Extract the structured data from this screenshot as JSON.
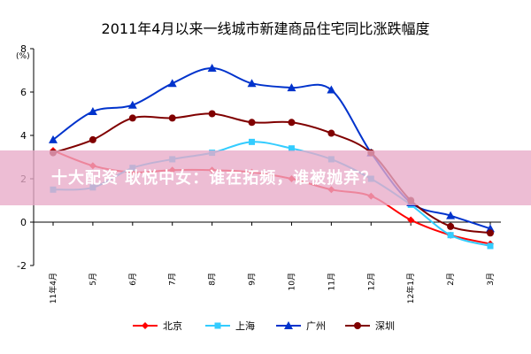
{
  "chart_data": {
    "type": "line",
    "title": "2011年4月以来一线城市新建商品住宅同比涨跌幅度",
    "ylabel": "(%)",
    "ylim": [
      -2,
      8
    ],
    "yticks": [
      -2,
      0,
      2,
      4,
      6,
      8
    ],
    "categories": [
      "11年4月",
      "5月",
      "6月",
      "7月",
      "8月",
      "9月",
      "10月",
      "11月",
      "12月",
      "12年1月",
      "2月",
      "3月"
    ],
    "grid": false,
    "legend_position": "bottom",
    "series": [
      {
        "name": "北京",
        "color": "#ff0000",
        "marker": "diamond",
        "values": [
          3.3,
          2.6,
          2.3,
          2.4,
          2.4,
          2.3,
          2.0,
          1.5,
          1.2,
          0.1,
          -0.6,
          -1.0
        ]
      },
      {
        "name": "上海",
        "color": "#33ccff",
        "marker": "square",
        "values": [
          1.5,
          1.6,
          2.5,
          2.9,
          3.2,
          3.7,
          3.4,
          2.9,
          2.0,
          0.8,
          -0.6,
          -1.1
        ]
      },
      {
        "name": "广州",
        "color": "#0033cc",
        "marker": "triangle",
        "values": [
          3.8,
          5.1,
          5.4,
          6.4,
          7.1,
          6.4,
          6.2,
          6.1,
          3.2,
          0.9,
          0.3,
          -0.3
        ]
      },
      {
        "name": "深圳",
        "color": "#800000",
        "marker": "circle",
        "values": [
          3.2,
          3.8,
          4.8,
          4.8,
          5.0,
          4.6,
          4.6,
          4.1,
          3.2,
          1.0,
          -0.2,
          -0.5
        ]
      }
    ]
  },
  "overlay": {
    "text": "十大配资 耿悦中女：谁在拓频，谁被抛弃？"
  }
}
